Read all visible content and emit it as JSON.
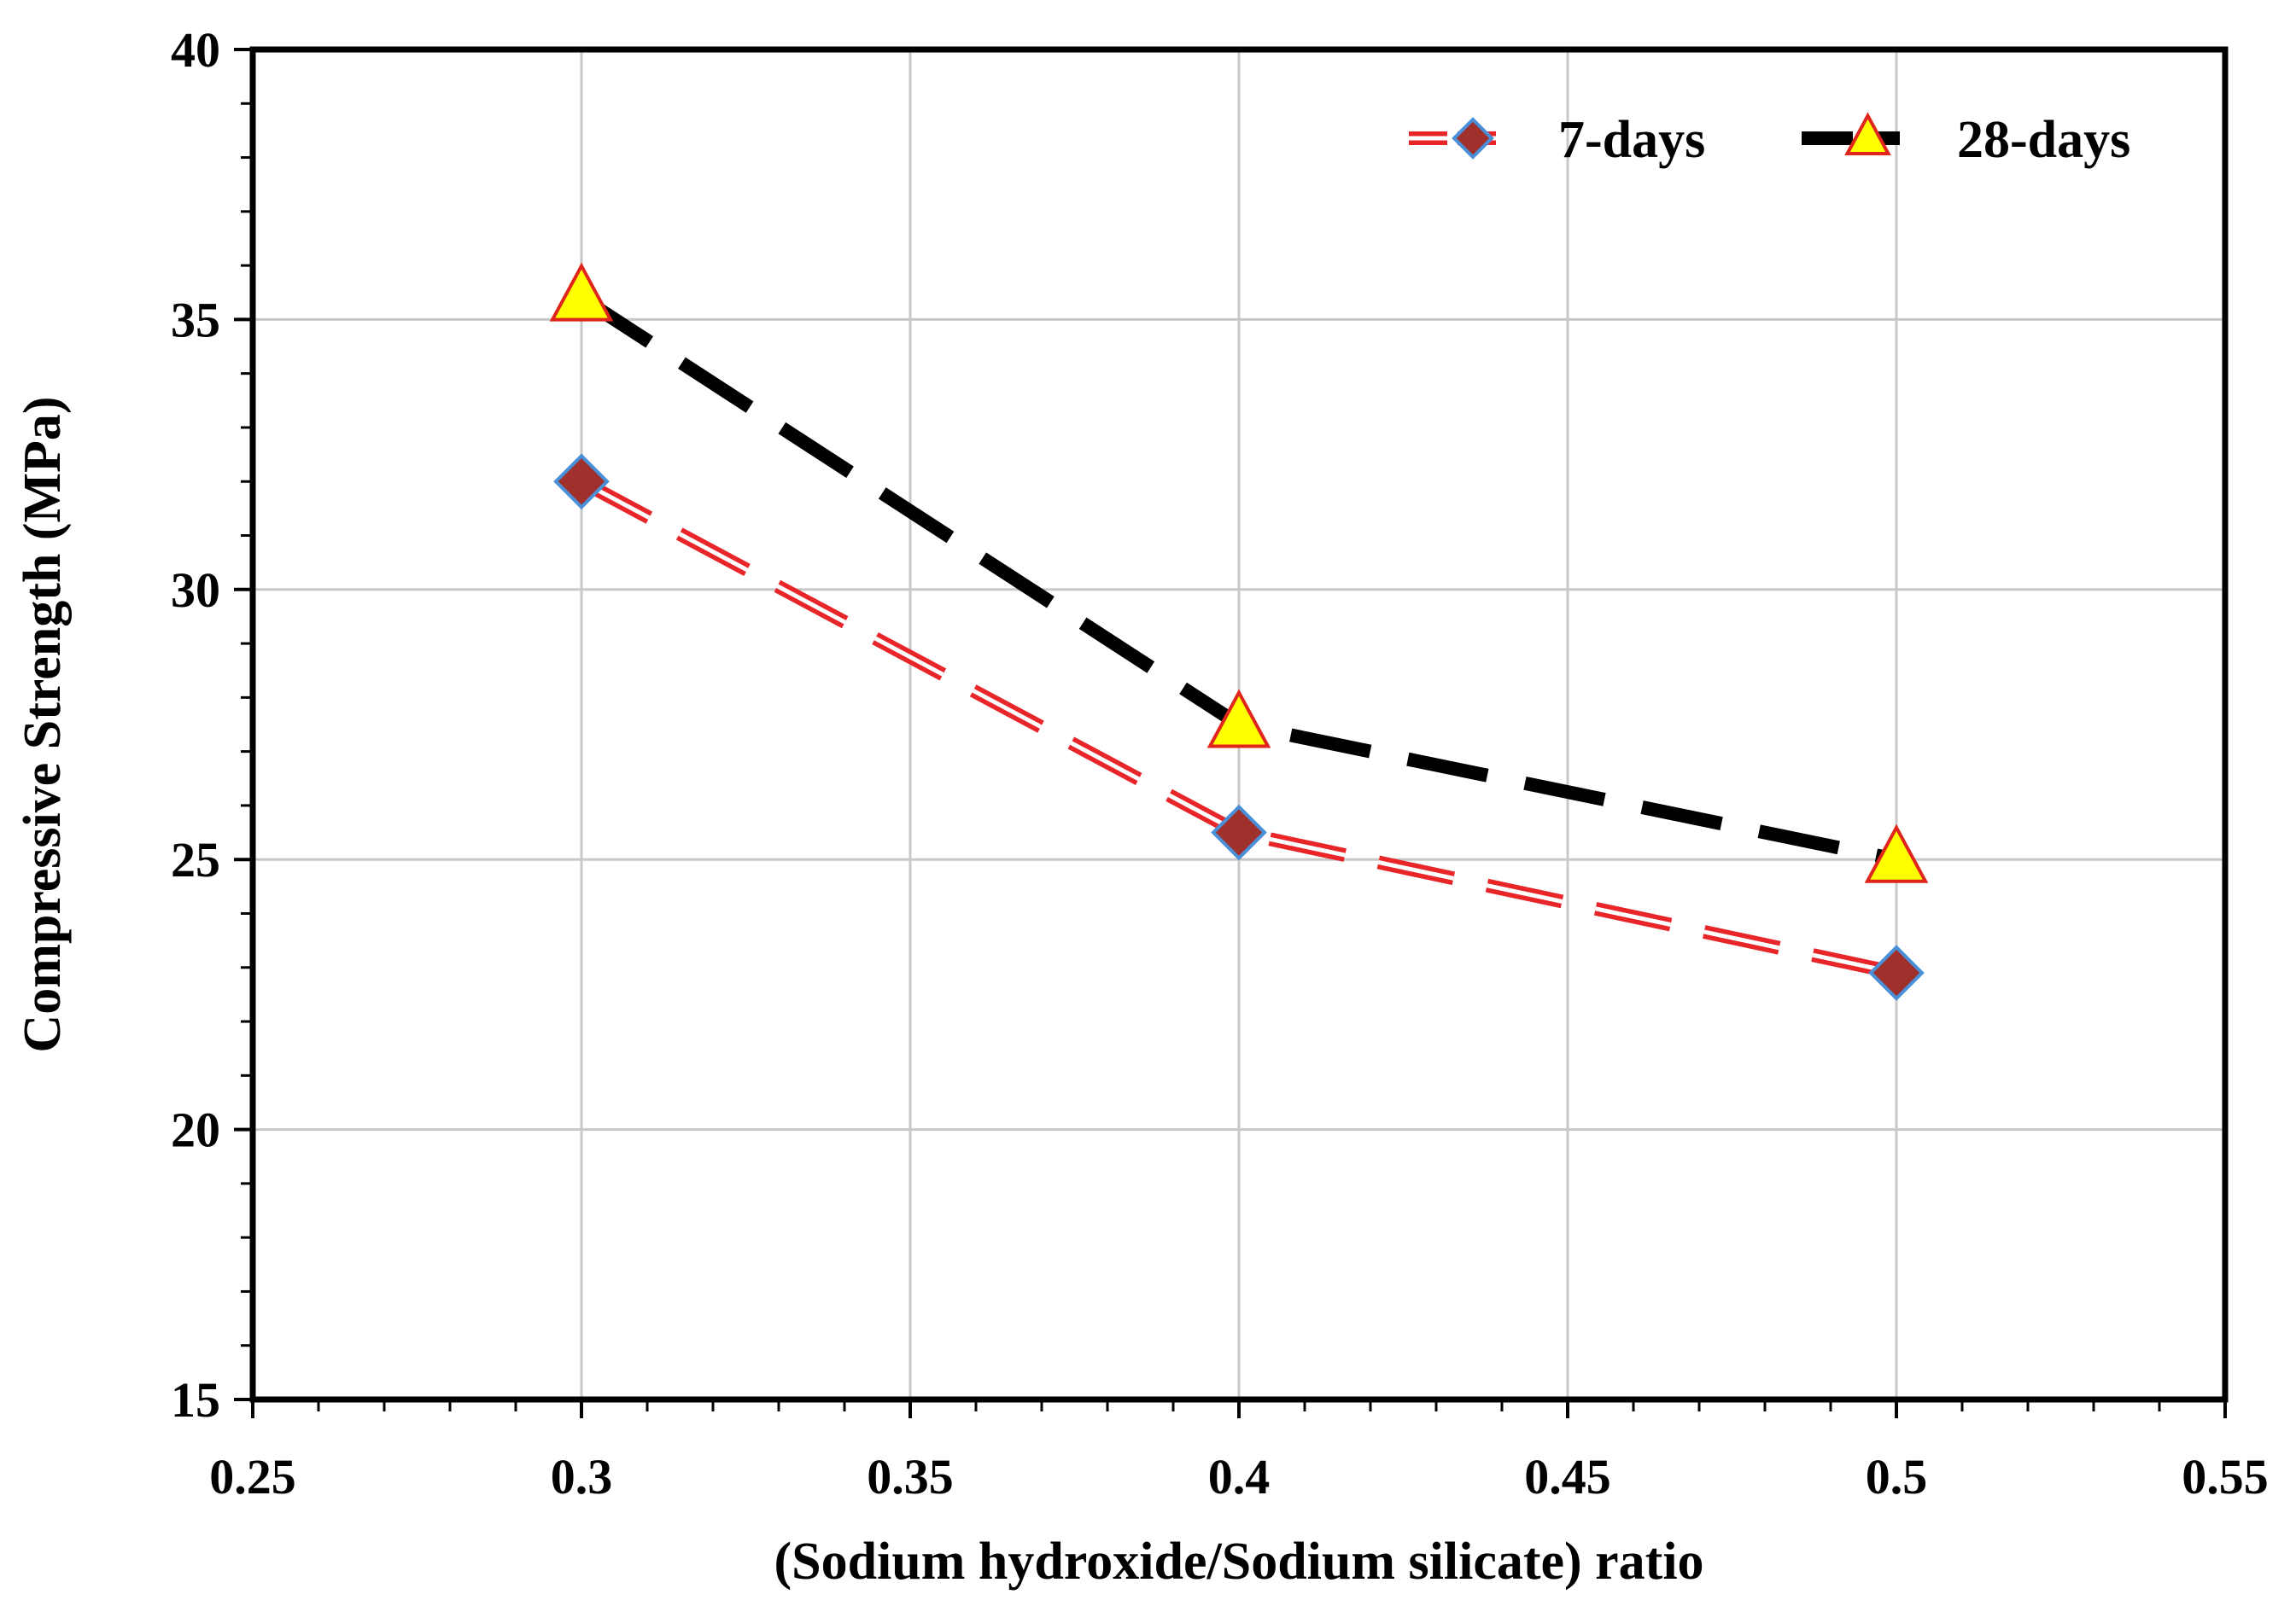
{
  "chart_data": {
    "type": "line",
    "title": "",
    "xlabel": "(Sodium hydroxide/Sodium silicate) ratio",
    "ylabel": "Compressive Strength (MPa)",
    "xlim": [
      0.25,
      0.55
    ],
    "ylim": [
      15,
      40
    ],
    "xticks": [
      0.25,
      0.3,
      0.35,
      0.4,
      0.45,
      0.5,
      0.55
    ],
    "xtick_labels": [
      "0.25",
      "0.3",
      "0.35",
      "0.4",
      "0.45",
      "0.5",
      "0.55"
    ],
    "yticks": [
      15,
      20,
      25,
      30,
      35,
      40
    ],
    "ytick_labels": [
      "15",
      "20",
      "25",
      "30",
      "35",
      "40"
    ],
    "grid": true,
    "legend_position": "top-right",
    "series": [
      {
        "name": "7-days",
        "x": [
          0.3,
          0.4,
          0.5
        ],
        "values": [
          32.0,
          25.5,
          22.9
        ],
        "marker": "diamond",
        "line_color": "#e8262a",
        "marker_fill": "#a0302c",
        "marker_edge": "#4a90d9"
      },
      {
        "name": "28-days",
        "x": [
          0.3,
          0.4,
          0.5
        ],
        "values": [
          35.4,
          27.5,
          25.0
        ],
        "marker": "triangle",
        "line_color": "#000000",
        "marker_fill": "#ffff00",
        "marker_edge": "#e0261c"
      }
    ]
  }
}
